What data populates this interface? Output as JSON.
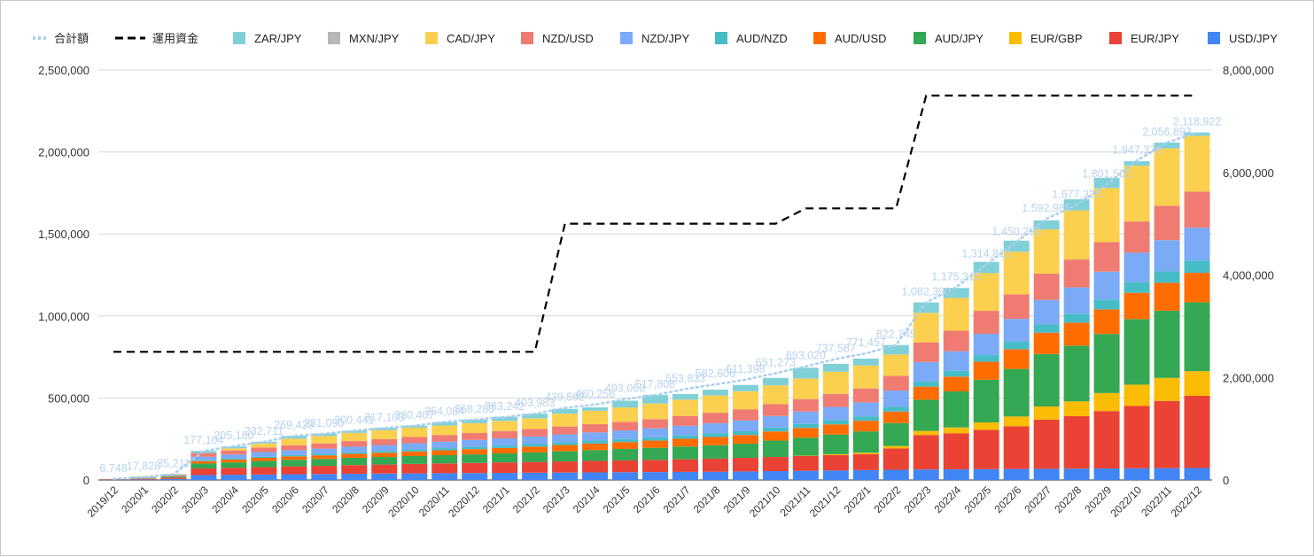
{
  "chart_data": {
    "type": "bar",
    "stacked": true,
    "title": "",
    "categories": [
      "2019/12",
      "2020/1",
      "2020/2",
      "2020/3",
      "2020/4",
      "2020/5",
      "2020/6",
      "2020/7",
      "2020/8",
      "2020/9",
      "2020/10",
      "2020/11",
      "2020/12",
      "2021/1",
      "2021/2",
      "2021/3",
      "2021/4",
      "2021/5",
      "2021/6",
      "2021/7",
      "2021/8",
      "2021/9",
      "2021/10",
      "2021/11",
      "2021/12",
      "2022/1",
      "2022/2",
      "2022/3",
      "2022/4",
      "2022/5",
      "2022/6",
      "2022/7",
      "2022/8",
      "2022/9",
      "2022/10",
      "2022/11",
      "2022/12"
    ],
    "ylim_left": [
      0,
      2500000
    ],
    "yticks_left": [
      "0",
      "500,000",
      "1,000,000",
      "1,500,000",
      "2,000,000",
      "2,500,000"
    ],
    "ylim_right": [
      0,
      8000000
    ],
    "yticks_right": [
      "0",
      "2,000,000",
      "4,000,000",
      "6,000,000",
      "8,000,000"
    ],
    "grid": true,
    "legend_position": "top",
    "legend_order": [
      "合計額",
      "運用資金",
      "ZAR/JPY",
      "MXN/JPY",
      "CAD/JPY",
      "NZD/USD",
      "NZD/JPY",
      "AUD/NZD",
      "AUD/USD",
      "AUD/JPY",
      "EUR/GBP",
      "EUR/JPY",
      "USD/JPY"
    ],
    "series": [
      {
        "name": "USD/JPY",
        "color": "#4285f4",
        "values": [
          1000,
          3000,
          6000,
          30000,
          32000,
          33000,
          35000,
          36000,
          38000,
          39000,
          40000,
          41000,
          42000,
          43000,
          44000,
          45000,
          46000,
          47000,
          48000,
          49000,
          50000,
          52000,
          54000,
          56000,
          58000,
          60000,
          62000,
          64000,
          65000,
          66000,
          67000,
          68000,
          69000,
          70000,
          71000,
          72000,
          73000
        ]
      },
      {
        "name": "EUR/JPY",
        "color": "#ea4335",
        "values": [
          1500,
          4000,
          8000,
          40000,
          42000,
          45000,
          48000,
          50000,
          53000,
          55000,
          58000,
          60000,
          62000,
          64000,
          66000,
          68000,
          70000,
          72000,
          74000,
          77000,
          80000,
          83000,
          86000,
          90000,
          94000,
          98000,
          130000,
          210000,
          220000,
          240000,
          260000,
          300000,
          320000,
          350000,
          380000,
          410000,
          440000
        ]
      },
      {
        "name": "EUR/GBP",
        "color": "#fbbc04",
        "values": [
          0,
          0,
          0,
          0,
          0,
          0,
          0,
          0,
          0,
          0,
          0,
          0,
          0,
          0,
          0,
          0,
          0,
          0,
          0,
          0,
          0,
          0,
          0,
          2000,
          5000,
          8000,
          15000,
          25000,
          35000,
          45000,
          60000,
          80000,
          90000,
          110000,
          130000,
          140000,
          150000
        ]
      },
      {
        "name": "AUD/JPY",
        "color": "#34a853",
        "values": [
          800,
          2500,
          6000,
          30000,
          33000,
          38000,
          40000,
          42000,
          44000,
          46000,
          48000,
          50000,
          52000,
          55000,
          58000,
          62000,
          66000,
          70000,
          74000,
          78000,
          82000,
          86000,
          100000,
          110000,
          120000,
          130000,
          140000,
          190000,
          220000,
          260000,
          290000,
          320000,
          340000,
          360000,
          400000,
          410000,
          420000
        ]
      },
      {
        "name": "AUD/USD",
        "color": "#ff6d01",
        "values": [
          500,
          1500,
          3000,
          15000,
          17000,
          19000,
          21000,
          22000,
          24000,
          26000,
          28000,
          30000,
          32000,
          33000,
          35000,
          38000,
          40000,
          42000,
          44000,
          47000,
          50000,
          53000,
          56000,
          59000,
          62000,
          65000,
          70000,
          80000,
          90000,
          110000,
          120000,
          130000,
          140000,
          150000,
          160000,
          170000,
          180000
        ]
      },
      {
        "name": "AUD/NZD",
        "color": "#46bdc6",
        "values": [
          200,
          500,
          1000,
          5000,
          6000,
          7000,
          8000,
          9000,
          10000,
          11000,
          12000,
          13000,
          14000,
          15000,
          16000,
          17000,
          18000,
          19000,
          20000,
          21000,
          22000,
          23000,
          24000,
          25000,
          26000,
          27000,
          28000,
          30000,
          35000,
          40000,
          45000,
          50000,
          55000,
          60000,
          65000,
          70000,
          75000
        ]
      },
      {
        "name": "NZD/JPY",
        "color": "#7baaf7",
        "values": [
          800,
          2200,
          4500,
          22000,
          25000,
          28000,
          30000,
          32000,
          34000,
          36000,
          38000,
          40000,
          42000,
          44000,
          46000,
          48000,
          50000,
          52000,
          55000,
          58000,
          62000,
          66000,
          70000,
          75000,
          80000,
          85000,
          100000,
          120000,
          120000,
          130000,
          140000,
          150000,
          160000,
          170000,
          180000,
          190000,
          200000
        ]
      },
      {
        "name": "NZD/USD",
        "color": "#f07b72",
        "values": [
          800,
          2200,
          4500,
          22000,
          25000,
          28000,
          30000,
          32000,
          34000,
          36000,
          38000,
          40000,
          42000,
          44000,
          46000,
          48000,
          50000,
          52000,
          56000,
          60000,
          64000,
          68000,
          72000,
          76000,
          80000,
          85000,
          90000,
          120000,
          125000,
          140000,
          150000,
          160000,
          170000,
          180000,
          190000,
          210000,
          220000
        ]
      },
      {
        "name": "CAD/JPY",
        "color": "#fcd04f",
        "values": [
          900,
          2500,
          2000,
          0,
          13000,
          25000,
          40000,
          45000,
          50000,
          55000,
          57000,
          58000,
          60000,
          62000,
          65000,
          78000,
          82000,
          88000,
          95000,
          100000,
          105000,
          110000,
          115000,
          125000,
          135000,
          140000,
          130000,
          180000,
          200000,
          230000,
          260000,
          270000,
          300000,
          330000,
          340000,
          350000,
          340000
        ]
      },
      {
        "name": "MXN/JPY",
        "color": "#b7b7b7",
        "values": [
          0,
          0,
          0,
          0,
          0,
          0,
          0,
          0,
          0,
          0,
          0,
          0,
          0,
          0,
          0,
          0,
          0,
          0,
          0,
          0,
          0,
          0,
          0,
          0,
          0,
          0,
          0,
          0,
          0,
          0,
          0,
          0,
          0,
          0,
          0,
          0,
          0
        ]
      },
      {
        "name": "ZAR/JPY",
        "color": "#80d0d8",
        "values": [
          248,
          3228,
          1211,
          13104,
          11160,
          9711,
          16429,
          15090,
          13441,
          13103,
          12407,
          21084,
          22283,
          25242,
          27983,
          29592,
          20256,
          41060,
          51808,
          33833,
          35606,
          38398,
          45273,
          66020,
          47587,
          42457,
          57745,
          63390,
          60315,
          68812,
          67290,
          54985,
          67325,
          61502,
          27378,
          34893,
          20922
        ]
      }
    ],
    "total_series": {
      "name": "合計額",
      "color": "#a9cfee",
      "values": [
        6748,
        17828,
        35211,
        177104,
        205160,
        232711,
        269429,
        281090,
        300441,
        317103,
        330407,
        354084,
        368283,
        383242,
        403983,
        439592,
        460256,
        493060,
        517808,
        553833,
        582606,
        611398,
        651273,
        693020,
        737587,
        771457,
        822745,
        1082390,
        1175315,
        1314812,
        1450290,
        1592985,
        1677325,
        1801502,
        1947378,
        2056893,
        2118922
      ],
      "labels": [
        "6,748",
        "17,828",
        "35,211",
        "177,104",
        "205,160",
        "232,711",
        "269,429",
        "281,090",
        "300,441",
        "317,103",
        "330,407",
        "354,084",
        "368,283",
        "383,242",
        "403,983",
        "439,592",
        "460,256",
        "493,060",
        "517,808",
        "553,833",
        "582,606",
        "611,398",
        "651,273",
        "693,020",
        "737,587",
        "771,457",
        "822,745",
        "1,082,390",
        "1,175,315",
        "1,314,812",
        "1,450,290",
        "1,592,985",
        "1,677,325",
        "1,801,502",
        "1,947,378",
        "2,056,893",
        "2,118,922"
      ]
    },
    "fund_series": {
      "name": "運用資金",
      "color": "#000000",
      "axis": "right",
      "values": [
        2500000,
        2500000,
        2500000,
        2500000,
        2500000,
        2500000,
        2500000,
        2500000,
        2500000,
        2500000,
        2500000,
        2500000,
        2500000,
        2500000,
        2500000,
        5000000,
        5000000,
        5000000,
        5000000,
        5000000,
        5000000,
        5000000,
        5000000,
        5300000,
        5300000,
        5300000,
        5300000,
        7500000,
        7500000,
        7500000,
        7500000,
        7500000,
        7500000,
        7500000,
        7500000,
        7500000,
        7500000
      ]
    }
  }
}
